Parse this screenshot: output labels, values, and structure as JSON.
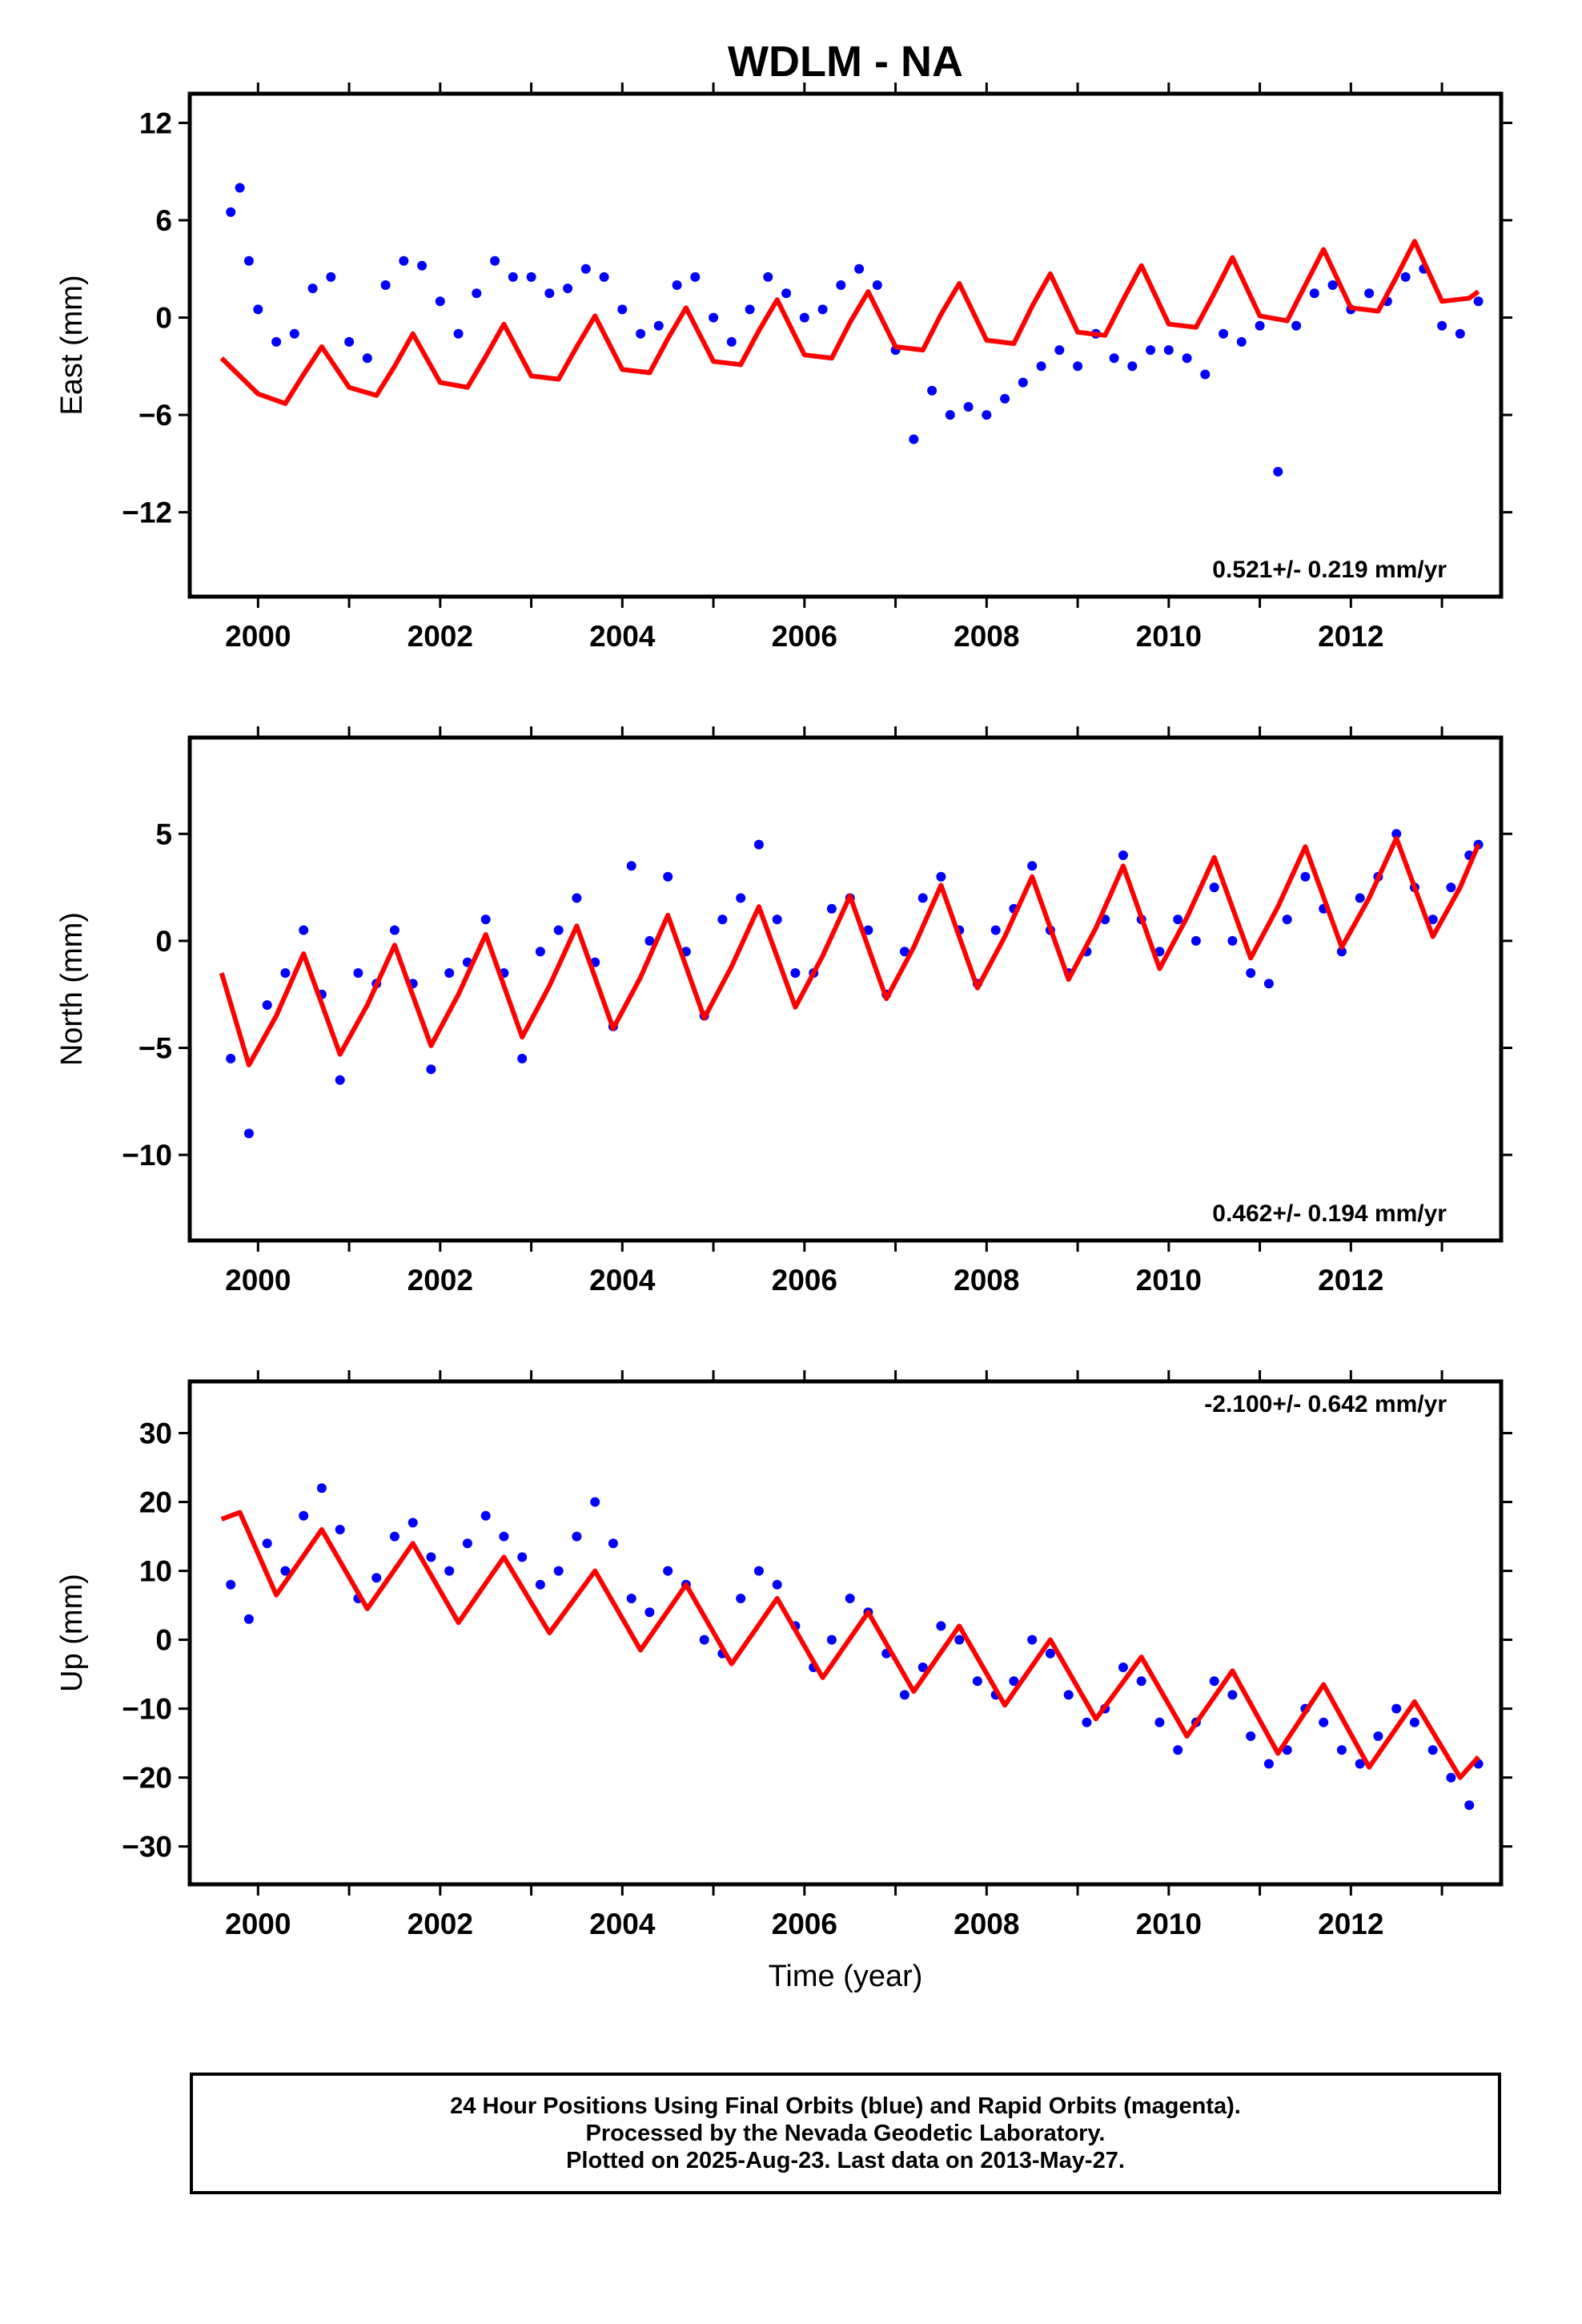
{
  "figure": {
    "title": "WDLM - NA",
    "xlabel": "Time (year)",
    "footer": [
      "24 Hour Positions Using Final Orbits (blue) and Rapid Orbits (magenta).",
      "Processed by the Nevada Geodetic Laboratory.",
      "Plotted on 2025-Aug-23. Last data on 2013-May-27."
    ],
    "colors": {
      "points": "#0000ff",
      "model": "#ff0000",
      "frame": "#000000"
    }
  },
  "chart_data": [
    {
      "type": "scatter",
      "panel": "east",
      "ylabel": "East (mm)",
      "rate_label": "0.521+/- 0.219 mm/yr",
      "rate_position": "bottom-right",
      "xlim": [
        1999.25,
        2013.65
      ],
      "ylim": [
        -17.2,
        13.8
      ],
      "yticks": [
        12,
        6,
        0,
        -6,
        -12
      ],
      "xticks": [
        2000,
        2002,
        2004,
        2006,
        2008,
        2010,
        2012
      ],
      "grid": false,
      "model": {
        "x": [
          1999.6,
          2000.0,
          2000.3,
          2000.5,
          2000.7,
          2001.0,
          2001.3,
          2001.5,
          2001.7,
          2002.0,
          2002.3,
          2002.5,
          2002.7,
          2003.0,
          2003.3,
          2003.5,
          2003.7,
          2004.0,
          2004.3,
          2004.5,
          2004.7,
          2005.0,
          2005.3,
          2005.5,
          2005.7,
          2006.0,
          2006.3,
          2006.5,
          2006.7,
          2007.0,
          2007.3,
          2007.5,
          2007.7,
          2008.0,
          2008.3,
          2008.5,
          2008.7,
          2009.0,
          2009.3,
          2009.5,
          2009.7,
          2010.0,
          2010.3,
          2010.5,
          2010.7,
          2011.0,
          2011.3,
          2011.5,
          2011.7,
          2012.0,
          2012.3,
          2012.5,
          2012.7,
          2013.0,
          2013.3,
          2013.4
        ],
        "y": [
          -2.5,
          -4.7,
          -5.3,
          -3.5,
          -1.8,
          -4.3,
          -4.8,
          -3.0,
          -1.0,
          -4.0,
          -4.3,
          -2.4,
          -0.4,
          -3.6,
          -3.8,
          -1.8,
          0.1,
          -3.2,
          -3.4,
          -1.3,
          0.6,
          -2.7,
          -2.9,
          -0.8,
          1.1,
          -2.3,
          -2.5,
          -0.3,
          1.6,
          -1.8,
          -2.0,
          0.2,
          2.1,
          -1.4,
          -1.6,
          0.7,
          2.7,
          -0.9,
          -1.1,
          1.1,
          3.2,
          -0.4,
          -0.6,
          1.5,
          3.7,
          0.1,
          -0.2,
          2.0,
          4.2,
          0.6,
          0.4,
          2.5,
          4.7,
          1.0,
          1.2,
          1.6
        ]
      },
      "points": {
        "x": [
          1999.7,
          1999.8,
          1999.9,
          2000.0,
          2000.2,
          2000.4,
          2000.6,
          2000.8,
          2001.0,
          2001.2,
          2001.4,
          2001.6,
          2001.8,
          2002.0,
          2002.2,
          2002.4,
          2002.6,
          2002.8,
          2003.0,
          2003.2,
          2003.4,
          2003.6,
          2003.8,
          2004.0,
          2004.2,
          2004.4,
          2004.6,
          2004.8,
          2005.0,
          2005.2,
          2005.4,
          2005.6,
          2005.8,
          2006.0,
          2006.2,
          2006.4,
          2006.6,
          2006.8,
          2007.0,
          2007.2,
          2007.4,
          2007.6,
          2007.8,
          2008.0,
          2008.2,
          2008.4,
          2008.6,
          2008.8,
          2009.0,
          2009.2,
          2009.4,
          2009.6,
          2009.8,
          2010.0,
          2010.2,
          2010.4,
          2010.6,
          2010.8,
          2011.0,
          2011.2,
          2011.4,
          2011.6,
          2011.8,
          2012.0,
          2012.2,
          2012.4,
          2012.6,
          2012.8,
          2013.0,
          2013.2,
          2013.4
        ],
        "y": [
          6.5,
          8.0,
          3.5,
          0.5,
          -1.5,
          -1.0,
          1.8,
          2.5,
          -1.5,
          -2.5,
          2.0,
          3.5,
          3.2,
          1.0,
          -1.0,
          1.5,
          3.5,
          2.5,
          2.5,
          1.5,
          1.8,
          3.0,
          2.5,
          0.5,
          -1.0,
          -0.5,
          2.0,
          2.5,
          0.0,
          -1.5,
          0.5,
          2.5,
          1.5,
          0.0,
          0.5,
          2.0,
          3.0,
          2.0,
          -2.0,
          -7.5,
          -4.5,
          -6.0,
          -5.5,
          -6.0,
          -5.0,
          -4.0,
          -3.0,
          -2.0,
          -3.0,
          -1.0,
          -2.5,
          -3.0,
          -2.0,
          -2.0,
          -2.5,
          -3.5,
          -1.0,
          -1.5,
          -0.5,
          -9.5,
          -0.5,
          1.5,
          2.0,
          0.5,
          1.5,
          1.0,
          2.5,
          3.0,
          -0.5,
          -1.0,
          1.0
        ]
      }
    },
    {
      "type": "scatter",
      "panel": "north",
      "ylabel": "North (mm)",
      "rate_label": "0.462+/- 0.194 mm/yr",
      "rate_position": "bottom-right",
      "xlim": [
        1999.25,
        2013.65
      ],
      "ylim": [
        -14.0,
        9.5
      ],
      "yticks": [
        5,
        0,
        -5,
        -10
      ],
      "xticks": [
        2000,
        2002,
        2004,
        2006,
        2008,
        2010,
        2012
      ],
      "grid": false,
      "model": {
        "x": [
          1999.6,
          1999.9,
          2000.2,
          2000.5,
          2000.9,
          2001.2,
          2001.5,
          2001.9,
          2002.2,
          2002.5,
          2002.9,
          2003.2,
          2003.5,
          2003.9,
          2004.2,
          2004.5,
          2004.9,
          2005.2,
          2005.5,
          2005.9,
          2006.2,
          2006.5,
          2006.9,
          2007.2,
          2007.5,
          2007.9,
          2008.2,
          2008.5,
          2008.9,
          2009.2,
          2009.5,
          2009.9,
          2010.2,
          2010.5,
          2010.9,
          2011.2,
          2011.5,
          2011.9,
          2012.2,
          2012.5,
          2012.9,
          2013.2,
          2013.4
        ],
        "y": [
          -1.5,
          -5.8,
          -3.5,
          -0.6,
          -5.3,
          -3.0,
          -0.2,
          -4.9,
          -2.5,
          0.3,
          -4.5,
          -2.1,
          0.7,
          -4.1,
          -1.7,
          1.2,
          -3.6,
          -1.2,
          1.6,
          -3.1,
          -0.7,
          2.1,
          -2.7,
          -0.3,
          2.6,
          -2.2,
          0.2,
          3.0,
          -1.8,
          0.6,
          3.5,
          -1.3,
          1.1,
          3.9,
          -0.8,
          1.6,
          4.4,
          -0.3,
          2.0,
          4.8,
          0.2,
          2.5,
          4.5
        ]
      },
      "points": {
        "x": [
          1999.7,
          1999.9,
          2000.1,
          2000.3,
          2000.5,
          2000.7,
          2000.9,
          2001.1,
          2001.3,
          2001.5,
          2001.7,
          2001.9,
          2002.1,
          2002.3,
          2002.5,
          2002.7,
          2002.9,
          2003.1,
          2003.3,
          2003.5,
          2003.7,
          2003.9,
          2004.1,
          2004.3,
          2004.5,
          2004.7,
          2004.9,
          2005.1,
          2005.3,
          2005.5,
          2005.7,
          2005.9,
          2006.1,
          2006.3,
          2006.5,
          2006.7,
          2006.9,
          2007.1,
          2007.3,
          2007.5,
          2007.7,
          2007.9,
          2008.1,
          2008.3,
          2008.5,
          2008.7,
          2008.9,
          2009.1,
          2009.3,
          2009.5,
          2009.7,
          2009.9,
          2010.1,
          2010.3,
          2010.5,
          2010.7,
          2010.9,
          2011.1,
          2011.3,
          2011.5,
          2011.7,
          2011.9,
          2012.1,
          2012.3,
          2012.5,
          2012.7,
          2012.9,
          2013.1,
          2013.3,
          2013.4
        ],
        "y": [
          -5.5,
          -9.0,
          -3.0,
          -1.5,
          0.5,
          -2.5,
          -6.5,
          -1.5,
          -2.0,
          0.5,
          -2.0,
          -6.0,
          -1.5,
          -1.0,
          1.0,
          -1.5,
          -5.5,
          -0.5,
          0.5,
          2.0,
          -1.0,
          -4.0,
          3.5,
          0.0,
          3.0,
          -0.5,
          -3.5,
          1.0,
          2.0,
          4.5,
          1.0,
          -1.5,
          -1.5,
          1.5,
          2.0,
          0.5,
          -2.5,
          -0.5,
          2.0,
          3.0,
          0.5,
          -2.0,
          0.5,
          1.5,
          3.5,
          0.5,
          -1.5,
          -0.5,
          1.0,
          4.0,
          1.0,
          -0.5,
          1.0,
          0.0,
          2.5,
          0.0,
          -1.5,
          -2.0,
          1.0,
          3.0,
          1.5,
          -0.5,
          2.0,
          3.0,
          5.0,
          2.5,
          1.0,
          2.5,
          4.0,
          4.5
        ]
      }
    },
    {
      "type": "scatter",
      "panel": "up",
      "ylabel": "Up (mm)",
      "rate_label": "-2.100+/- 0.642 mm/yr",
      "rate_position": "top-right",
      "xlim": [
        1999.25,
        2013.65
      ],
      "ylim": [
        -35.5,
        37.5
      ],
      "yticks": [
        30,
        20,
        10,
        0,
        -10,
        -20,
        -30
      ],
      "xticks": [
        2000,
        2002,
        2004,
        2006,
        2008,
        2010,
        2012
      ],
      "grid": false,
      "model": {
        "x": [
          1999.6,
          1999.8,
          2000.2,
          2000.7,
          2001.2,
          2001.7,
          2002.2,
          2002.7,
          2003.2,
          2003.7,
          2004.2,
          2004.7,
          2005.2,
          2005.7,
          2006.2,
          2006.7,
          2007.2,
          2007.7,
          2008.2,
          2008.7,
          2009.2,
          2009.7,
          2010.2,
          2010.7,
          2011.2,
          2011.7,
          2012.2,
          2012.7,
          2013.2,
          2013.4
        ],
        "y": [
          17.5,
          18.5,
          6.5,
          16.0,
          4.5,
          14.0,
          2.5,
          12.0,
          1.0,
          10.0,
          -1.5,
          8.0,
          -3.5,
          6.0,
          -5.5,
          4.0,
          -7.5,
          2.0,
          -9.5,
          0.0,
          -11.5,
          -2.5,
          -14.0,
          -4.5,
          -16.5,
          -6.5,
          -18.5,
          -9.0,
          -20.0,
          -17.0
        ]
      },
      "points": {
        "x": [
          1999.7,
          1999.9,
          2000.1,
          2000.3,
          2000.5,
          2000.7,
          2000.9,
          2001.1,
          2001.3,
          2001.5,
          2001.7,
          2001.9,
          2002.1,
          2002.3,
          2002.5,
          2002.7,
          2002.9,
          2003.1,
          2003.3,
          2003.5,
          2003.7,
          2003.9,
          2004.1,
          2004.3,
          2004.5,
          2004.7,
          2004.9,
          2005.1,
          2005.3,
          2005.5,
          2005.7,
          2005.9,
          2006.1,
          2006.3,
          2006.5,
          2006.7,
          2006.9,
          2007.1,
          2007.3,
          2007.5,
          2007.7,
          2007.9,
          2008.1,
          2008.3,
          2008.5,
          2008.7,
          2008.9,
          2009.1,
          2009.3,
          2009.5,
          2009.7,
          2009.9,
          2010.1,
          2010.3,
          2010.5,
          2010.7,
          2010.9,
          2011.1,
          2011.3,
          2011.5,
          2011.7,
          2011.9,
          2012.1,
          2012.3,
          2012.5,
          2012.7,
          2012.9,
          2013.1,
          2013.3,
          2013.4
        ],
        "y": [
          8.0,
          3.0,
          14.0,
          10.0,
          18.0,
          22.0,
          16.0,
          6.0,
          9.0,
          15.0,
          17.0,
          12.0,
          10.0,
          14.0,
          18.0,
          15.0,
          12.0,
          8.0,
          10.0,
          15.0,
          20.0,
          14.0,
          6.0,
          4.0,
          10.0,
          8.0,
          0.0,
          -2.0,
          6.0,
          10.0,
          8.0,
          2.0,
          -4.0,
          0.0,
          6.0,
          4.0,
          -2.0,
          -8.0,
          -4.0,
          2.0,
          0.0,
          -6.0,
          -8.0,
          -6.0,
          0.0,
          -2.0,
          -8.0,
          -12.0,
          -10.0,
          -4.0,
          -6.0,
          -12.0,
          -16.0,
          -12.0,
          -6.0,
          -8.0,
          -14.0,
          -18.0,
          -16.0,
          -10.0,
          -12.0,
          -16.0,
          -18.0,
          -14.0,
          -10.0,
          -12.0,
          -16.0,
          -20.0,
          -24.0,
          -18.0
        ]
      }
    }
  ]
}
